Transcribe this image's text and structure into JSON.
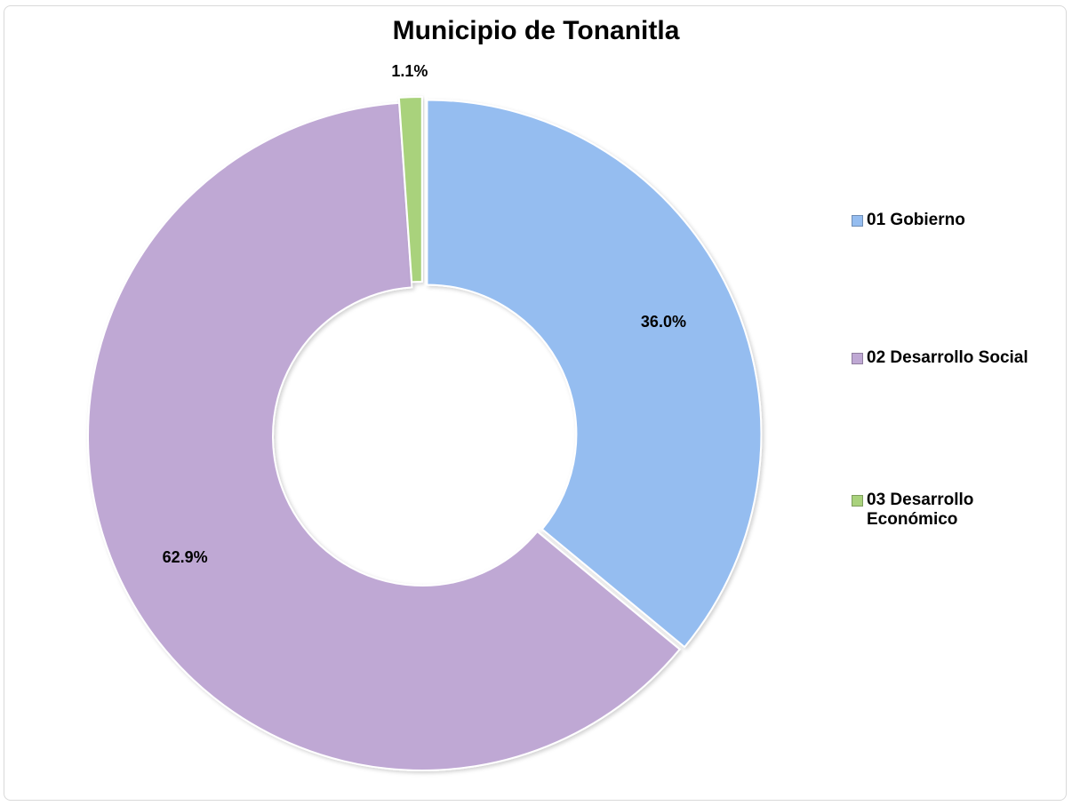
{
  "chart_data": {
    "type": "pie",
    "variant": "doughnut",
    "title": "Municipio de Tonanitla",
    "categories": [
      "01 Gobierno",
      "02 Desarrollo Social",
      "03 Desarrollo Económico"
    ],
    "values": [
      36.0,
      62.9,
      1.1
    ],
    "value_labels": [
      "36.0%",
      "62.9%",
      "1.1%"
    ],
    "colors": [
      "#95BDF0",
      "#BFA8D4",
      "#A9D27C"
    ],
    "legend_position": "right",
    "grid": false
  }
}
